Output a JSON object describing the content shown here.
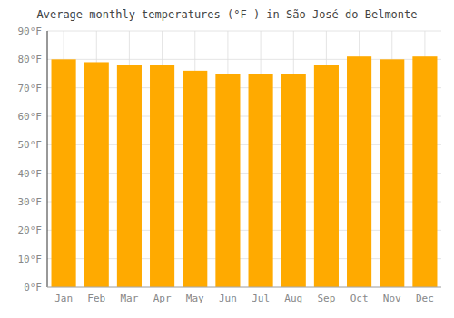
{
  "chart_data": {
    "type": "bar",
    "title": "Average monthly temperatures (°F ) in São José do Belmonte",
    "categories": [
      "Jan",
      "Feb",
      "Mar",
      "Apr",
      "May",
      "Jun",
      "Jul",
      "Aug",
      "Sep",
      "Oct",
      "Nov",
      "Dec"
    ],
    "values": [
      80,
      79,
      78,
      78,
      76,
      75,
      75,
      75,
      78,
      81,
      80,
      81
    ],
    "color": "#FFAA00",
    "ylim": [
      0,
      90
    ],
    "yticks": [
      {
        "value": 0,
        "label": "0°F"
      },
      {
        "value": 10,
        "label": "10°F"
      },
      {
        "value": 20,
        "label": "20°F"
      },
      {
        "value": 30,
        "label": "30°F"
      },
      {
        "value": 40,
        "label": "40°F"
      },
      {
        "value": 50,
        "label": "50°F"
      },
      {
        "value": 60,
        "label": "60°F"
      },
      {
        "value": 70,
        "label": "70°F"
      },
      {
        "value": 80,
        "label": "80°F"
      },
      {
        "value": 90,
        "label": "90°F"
      }
    ],
    "grid": true
  }
}
